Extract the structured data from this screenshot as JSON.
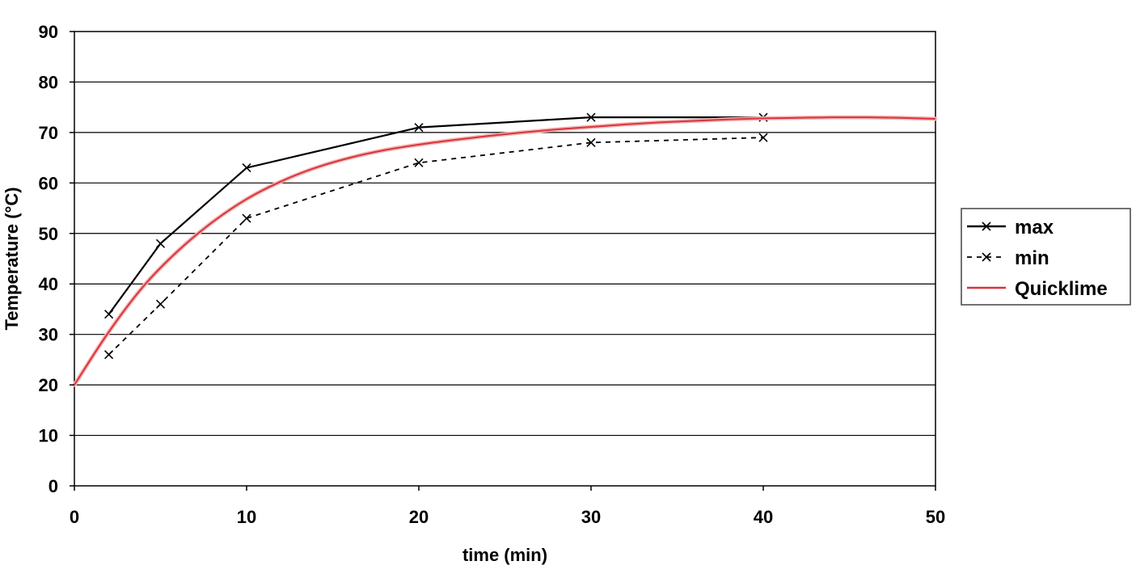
{
  "chart_data": {
    "type": "line",
    "xlabel": "time (min)",
    "ylabel": "Temperature (°C)",
    "xlim": [
      0,
      50
    ],
    "ylim": [
      0,
      90
    ],
    "x_ticks": [
      0,
      10,
      20,
      30,
      40,
      50
    ],
    "y_ticks": [
      0,
      10,
      20,
      30,
      40,
      50,
      60,
      70,
      80,
      90
    ],
    "grid": "horizontal",
    "legend_position": "right",
    "series": [
      {
        "name": "max",
        "style": "solid",
        "marker": "x",
        "color": "#000000",
        "x": [
          2,
          5,
          10,
          20,
          30,
          40
        ],
        "y": [
          34,
          48,
          63,
          71,
          73,
          73
        ]
      },
      {
        "name": "min",
        "style": "dashed",
        "marker": "x",
        "color": "#000000",
        "x": [
          2,
          5,
          10,
          20,
          30,
          40
        ],
        "y": [
          26,
          36,
          53,
          64,
          68,
          69
        ]
      },
      {
        "name": "Quicklime",
        "style": "solid",
        "marker": "none",
        "color": "#d9343a",
        "x": [
          0,
          2,
          4,
          6,
          8,
          10,
          12,
          14,
          16,
          18,
          20,
          22,
          24,
          26,
          28,
          30,
          32,
          34,
          36,
          38,
          40,
          42,
          44,
          46,
          48,
          50
        ],
        "y": [
          20,
          30.5,
          39.5,
          46.5,
          52.2,
          56.8,
          60.3,
          63.0,
          65.0,
          66.5,
          67.6,
          68.5,
          69.3,
          70.0,
          70.6,
          71.1,
          71.6,
          72.0,
          72.3,
          72.6,
          72.8,
          72.9,
          73.0,
          73.0,
          72.9,
          72.7
        ]
      }
    ]
  }
}
